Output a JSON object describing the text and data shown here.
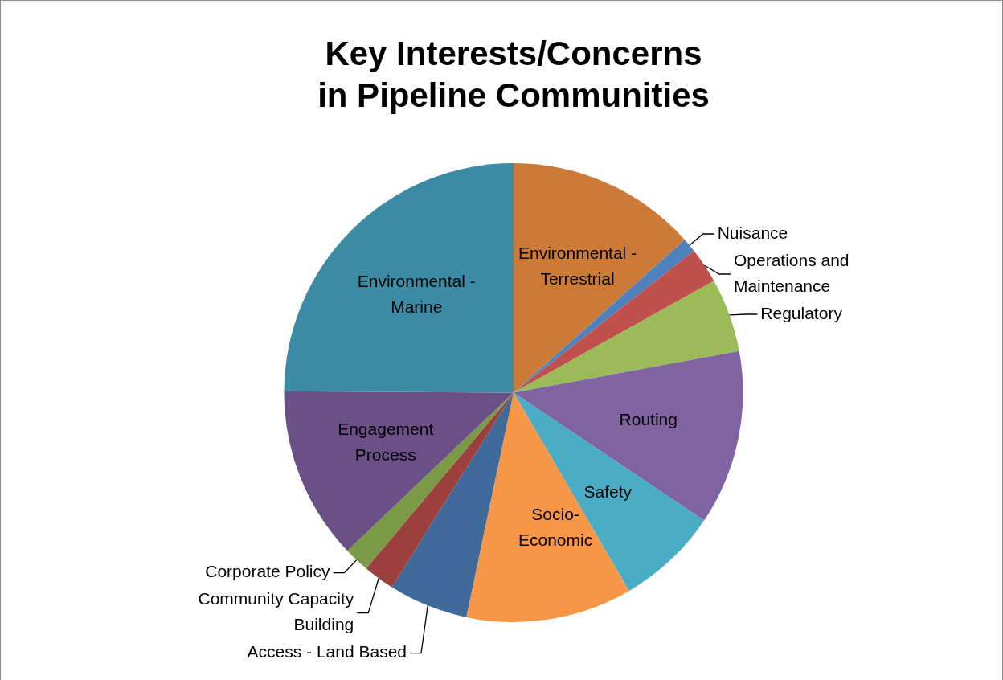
{
  "chart_data": {
    "type": "pie",
    "title": "Key Interests/Concerns\nin Pipeline Communities",
    "categories": [
      "Environmental - Terrestrial",
      "Nuisance",
      "Operations and Maintenance",
      "Regulatory",
      "Routing",
      "Safety",
      "Socio-Economic",
      "Access - Land Based",
      "Community Capacity Building",
      "Corporate Policy",
      "Engagement Process",
      "Environmental - Marine"
    ],
    "values": [
      13.4,
      1,
      2.5,
      5.2,
      12.3,
      7.2,
      11.7,
      5.6,
      2.2,
      1.8,
      12.2,
      24.9
    ],
    "colors": [
      "#cc7a38",
      "#4f81bd",
      "#c0504d",
      "#9bbb59",
      "#8064a2",
      "#4bacc6",
      "#f79646",
      "#3f6a9a",
      "#9c403d",
      "#7a9a45",
      "#6a5087",
      "#3c8ba4"
    ],
    "legend": false
  }
}
